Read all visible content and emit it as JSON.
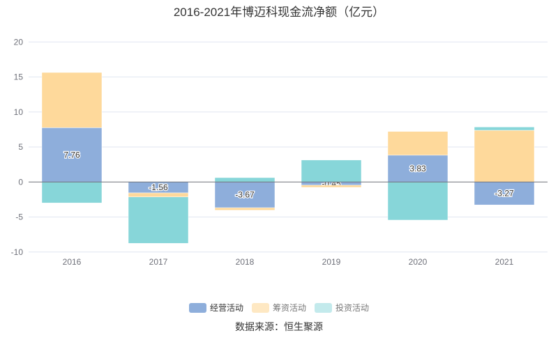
{
  "chart_data": {
    "type": "bar",
    "stacked": true,
    "title": "2016-2021年博迈科现金流净额（亿元）",
    "categories": [
      "2016",
      "2017",
      "2018",
      "2019",
      "2020",
      "2021"
    ],
    "ylim": [
      -10,
      20
    ],
    "yticks": [
      "20",
      "15",
      "10",
      "5",
      "0",
      "-5",
      "-10"
    ],
    "ytick_values": [
      20,
      15,
      10,
      5,
      0,
      -5,
      -10
    ],
    "grid": true,
    "legend_position": "bottom",
    "series": [
      {
        "name": "经营活动",
        "color": "#8eaedb",
        "values": [
          7.76,
          -1.56,
          -3.67,
          -0.45,
          3.83,
          -3.27
        ],
        "labels": [
          "7.76",
          "-1.56",
          "-3.67",
          "-0.45",
          "3.83",
          "-3.27"
        ]
      },
      {
        "name": "筹资活动",
        "color": "#fed99b",
        "values": [
          7.89,
          -0.57,
          -0.35,
          -0.31,
          3.4,
          7.39
        ]
      },
      {
        "name": "投资活动",
        "color": "#87d6d9",
        "values": [
          -2.99,
          -6.63,
          0.63,
          3.15,
          -5.44,
          0.47
        ]
      }
    ]
  },
  "footer": {
    "source": "数据来源：恒生聚源"
  }
}
